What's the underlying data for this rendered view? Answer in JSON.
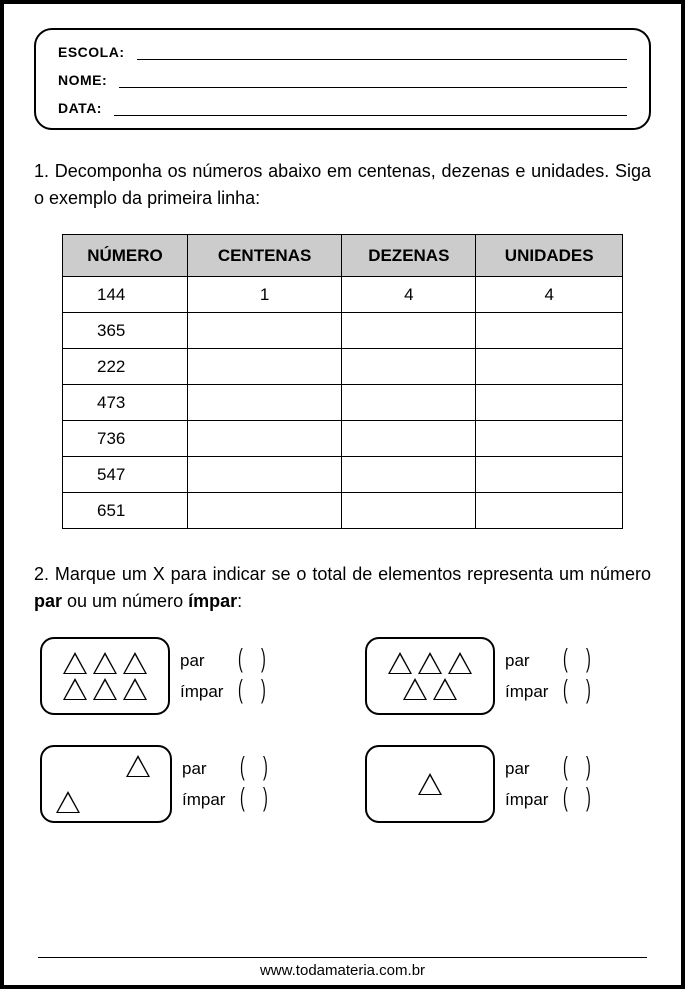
{
  "header": {
    "escola_label": "ESCOLA:",
    "nome_label": "NOME:",
    "data_label": "DATA:"
  },
  "q1": {
    "text": "1. Decomponha os números abaixo em centenas, dezenas e unidades. Siga o exemplo da primeira linha:",
    "columns": [
      "NÚMERO",
      "CENTENAS",
      "DEZENAS",
      "UNIDADES"
    ],
    "rows": [
      {
        "numero": "144",
        "centenas": "1",
        "dezenas": "4",
        "unidades": "4"
      },
      {
        "numero": "365",
        "centenas": "",
        "dezenas": "",
        "unidades": ""
      },
      {
        "numero": "222",
        "centenas": "",
        "dezenas": "",
        "unidades": ""
      },
      {
        "numero": "473",
        "centenas": "",
        "dezenas": "",
        "unidades": ""
      },
      {
        "numero": "736",
        "centenas": "",
        "dezenas": "",
        "unidades": ""
      },
      {
        "numero": "547",
        "centenas": "",
        "dezenas": "",
        "unidades": ""
      },
      {
        "numero": "651",
        "centenas": "",
        "dezenas": "",
        "unidades": ""
      }
    ]
  },
  "q2": {
    "text_prefix": "2. Marque um X para indicar se o total de elementos representa um número ",
    "bold1": "par",
    "mid": " ou um número ",
    "bold2": "ímpar",
    "suffix": ":",
    "par_label": "par",
    "impar_label": "ímpar",
    "items": [
      {
        "shape_rows": [
          3,
          3
        ],
        "layout": "grid"
      },
      {
        "shape_rows": [
          3,
          2
        ],
        "layout": "grid"
      },
      {
        "shape_rows": [
          2
        ],
        "layout": "scattered"
      },
      {
        "shape_rows": [
          1
        ],
        "layout": "grid"
      }
    ]
  },
  "footer": {
    "url": "www.todamateria.com.br"
  },
  "style": {
    "border_color": "#000000",
    "background": "#ffffff",
    "table_header_bg": "#cccccc",
    "text_color": "#000000",
    "body_fontsize": 18,
    "table_fontsize": 17,
    "header_label_fontsize": 14,
    "footer_fontsize": 15
  }
}
